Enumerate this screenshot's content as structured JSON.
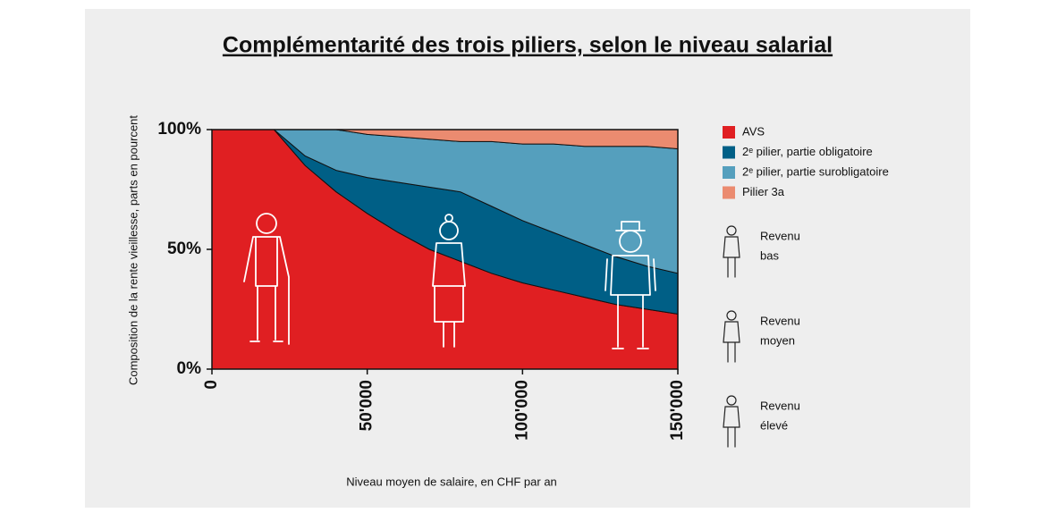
{
  "chart_data": {
    "type": "stacked-area",
    "title": "Complémentarité des trois piliers, selon le niveau salarial",
    "ylabel": "Composition de la rente vieillesse, parts en pourcent",
    "xlabel": "Niveau moyen de salaire, en CHF par an",
    "x": [
      0,
      20000,
      30000,
      40000,
      50000,
      60000,
      70000,
      80000,
      90000,
      100000,
      110000,
      120000,
      130000,
      140000,
      150000
    ],
    "series": [
      {
        "name": "AVS",
        "color": "#e01f22",
        "values": [
          100,
          100,
          85,
          74,
          65,
          57,
          50,
          45,
          40,
          36,
          33,
          30,
          27,
          25,
          23
        ]
      },
      {
        "name": "2ᵉ pilier, partie obligatoire",
        "color": "#005f86",
        "values": [
          0,
          0,
          4,
          9,
          15,
          21,
          26,
          29,
          28,
          26,
          24,
          22,
          20,
          18,
          17
        ]
      },
      {
        "name": "2ᵉ pilier, partie surobligatoire",
        "color": "#559fbd",
        "values": [
          0,
          0,
          11,
          17,
          18,
          19,
          20,
          21,
          27,
          32,
          37,
          41,
          46,
          50,
          52
        ]
      },
      {
        "name": "Pilier 3a",
        "color": "#eb8b70",
        "values": [
          0,
          0,
          0,
          0,
          2,
          3,
          4,
          5,
          5,
          6,
          6,
          7,
          7,
          7,
          8
        ]
      }
    ],
    "xlim": [
      0,
      150000
    ],
    "xticks": [
      0,
      {
        "value": 50000,
        "label": "50'000"
      },
      {
        "value": 100000,
        "label": "100'000"
      },
      {
        "value": 150000,
        "label": "150'000"
      }
    ],
    "ylim": [
      0,
      100
    ],
    "yticks": [
      {
        "value": 0,
        "label": "0%"
      },
      {
        "value": 50,
        "label": "50%"
      },
      {
        "value": 100,
        "label": "100%"
      }
    ],
    "income_legend": [
      [
        "Revenu",
        "bas"
      ],
      [
        "Revenu",
        "moyen"
      ],
      [
        "Revenu",
        "élevé"
      ]
    ]
  }
}
